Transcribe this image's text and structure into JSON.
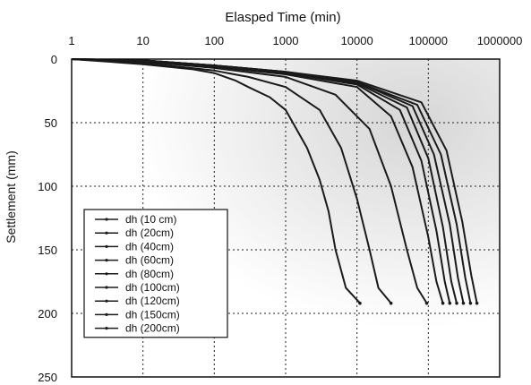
{
  "chart_data": {
    "type": "line",
    "title": "",
    "xlabel": "Elasped  Time (min)",
    "ylabel": "Settlement (mm)",
    "x_scale": "log",
    "x_position": "top",
    "y_inverted": true,
    "xlim": [
      1,
      1000000
    ],
    "ylim": [
      0,
      250
    ],
    "x_ticks": [
      "1",
      "10",
      "100",
      "1000",
      "10000",
      "100000",
      "1000000"
    ],
    "y_ticks": [
      "0",
      "50",
      "100",
      "150",
      "200",
      "250"
    ],
    "grid": "dotted",
    "legend_position": "bottom-left",
    "series": [
      {
        "name": "dh (10 cm)",
        "points": [
          [
            1,
            0
          ],
          [
            10,
            4
          ],
          [
            50,
            8
          ],
          [
            100,
            11
          ],
          [
            200,
            17
          ],
          [
            300,
            22
          ],
          [
            600,
            30
          ],
          [
            1000,
            40
          ],
          [
            2000,
            70
          ],
          [
            3000,
            95
          ],
          [
            4000,
            120
          ],
          [
            5000,
            150
          ],
          [
            7000,
            180
          ],
          [
            11000,
            192
          ]
        ]
      },
      {
        "name": "dh (20cm)",
        "points": [
          [
            1,
            0
          ],
          [
            10,
            3
          ],
          [
            100,
            9
          ],
          [
            300,
            14
          ],
          [
            1000,
            22
          ],
          [
            3000,
            40
          ],
          [
            6000,
            70
          ],
          [
            10000,
            110
          ],
          [
            15000,
            150
          ],
          [
            20000,
            180
          ],
          [
            30000,
            192
          ]
        ]
      },
      {
        "name": "dh (40cm)",
        "points": [
          [
            1,
            0
          ],
          [
            10,
            2
          ],
          [
            100,
            7
          ],
          [
            1000,
            14
          ],
          [
            5000,
            28
          ],
          [
            15000,
            55
          ],
          [
            30000,
            100
          ],
          [
            50000,
            150
          ],
          [
            70000,
            180
          ],
          [
            95000,
            192
          ]
        ]
      },
      {
        "name": "dh (60cm)",
        "points": [
          [
            1,
            0
          ],
          [
            10,
            2
          ],
          [
            100,
            6
          ],
          [
            1000,
            12
          ],
          [
            10000,
            22
          ],
          [
            30000,
            45
          ],
          [
            60000,
            85
          ],
          [
            100000,
            140
          ],
          [
            130000,
            175
          ],
          [
            160000,
            192
          ]
        ]
      },
      {
        "name": "dh (80cm)",
        "points": [
          [
            1,
            0
          ],
          [
            10,
            2
          ],
          [
            100,
            6
          ],
          [
            1000,
            11
          ],
          [
            10000,
            20
          ],
          [
            40000,
            40
          ],
          [
            80000,
            80
          ],
          [
            130000,
            135
          ],
          [
            170000,
            175
          ],
          [
            200000,
            192
          ]
        ]
      },
      {
        "name": "dh (100cm)",
        "points": [
          [
            1,
            0
          ],
          [
            10,
            1
          ],
          [
            100,
            5
          ],
          [
            1000,
            11
          ],
          [
            10000,
            19
          ],
          [
            50000,
            38
          ],
          [
            100000,
            78
          ],
          [
            160000,
            132
          ],
          [
            210000,
            175
          ],
          [
            250000,
            192
          ]
        ]
      },
      {
        "name": "dh (120cm)",
        "points": [
          [
            1,
            0
          ],
          [
            10,
            1
          ],
          [
            100,
            5
          ],
          [
            1000,
            10
          ],
          [
            10000,
            18
          ],
          [
            60000,
            37
          ],
          [
            120000,
            75
          ],
          [
            200000,
            130
          ],
          [
            260000,
            172
          ],
          [
            310000,
            192
          ]
        ]
      },
      {
        "name": "dh (150cm)",
        "points": [
          [
            1,
            0
          ],
          [
            10,
            1
          ],
          [
            100,
            5
          ],
          [
            1000,
            10
          ],
          [
            10000,
            18
          ],
          [
            70000,
            36
          ],
          [
            150000,
            75
          ],
          [
            250000,
            130
          ],
          [
            330000,
            172
          ],
          [
            390000,
            192
          ]
        ]
      },
      {
        "name": "dh (200cm)",
        "points": [
          [
            1,
            0
          ],
          [
            10,
            1
          ],
          [
            100,
            5
          ],
          [
            1000,
            10
          ],
          [
            10000,
            17
          ],
          [
            80000,
            34
          ],
          [
            180000,
            72
          ],
          [
            300000,
            128
          ],
          [
            400000,
            170
          ],
          [
            480000,
            192
          ]
        ]
      }
    ]
  }
}
